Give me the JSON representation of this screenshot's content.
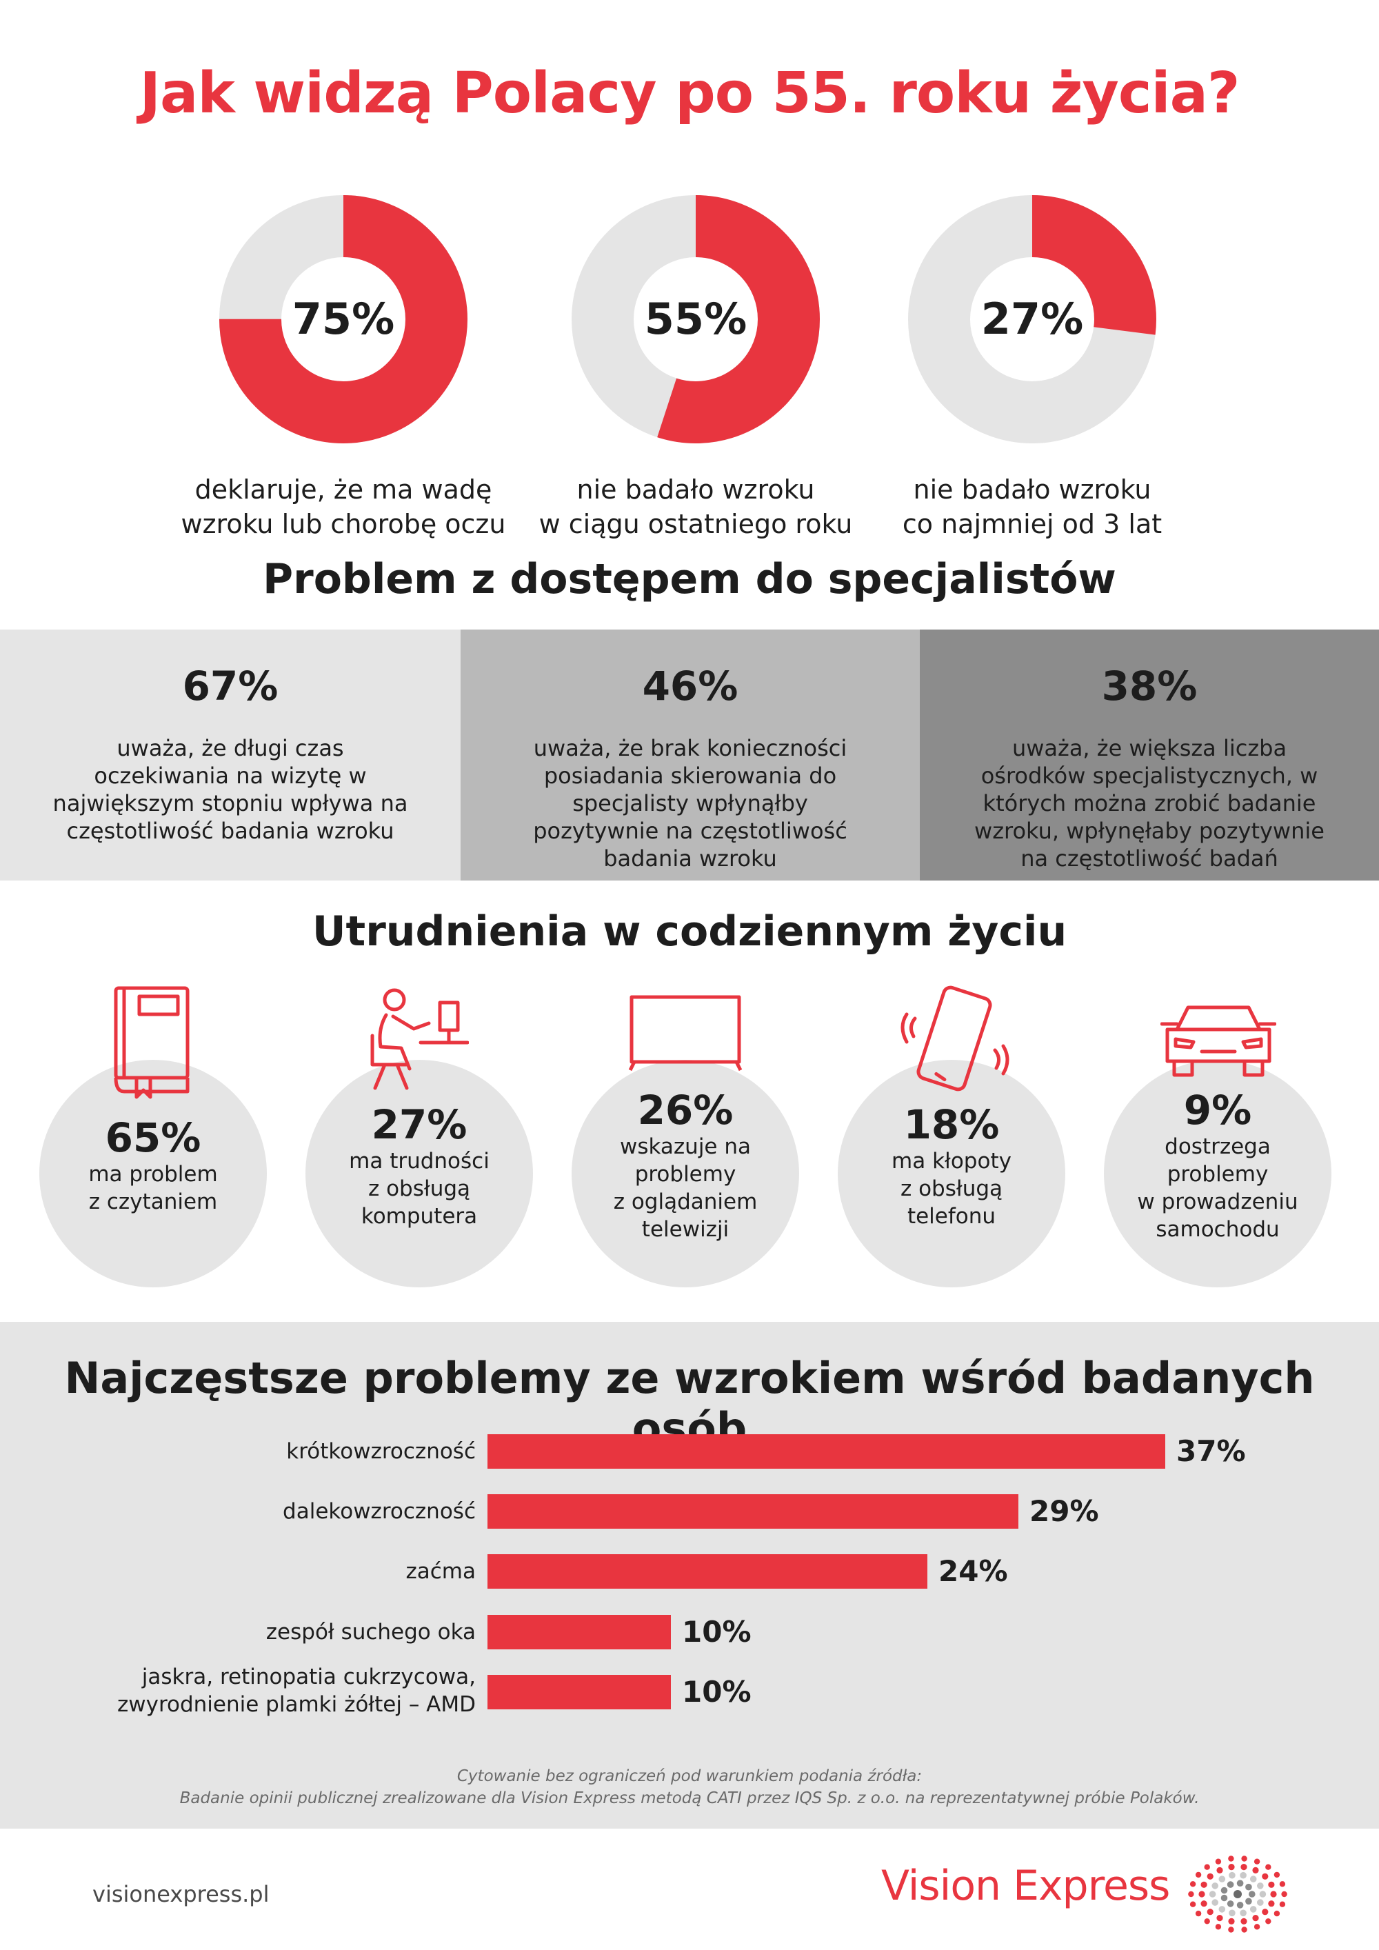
{
  "title": "Jak widzą Polacy po 55. roku życia?",
  "colors": {
    "accent": "#e8353f",
    "ring_bg": "#e5e5e5",
    "panel_1": "#e5e5e5",
    "panel_2": "#b9b9b9",
    "panel_3": "#8c8c8c",
    "text": "#1d1d1d"
  },
  "donuts": [
    {
      "value": 75,
      "label": "75%",
      "desc_line1": "deklaruje, że ma wadę",
      "desc_line2": "wzroku lub chorobę oczu"
    },
    {
      "value": 55,
      "label": "55%",
      "desc_line1": "nie badało wzroku",
      "desc_line2": "w ciągu ostatniego roku"
    },
    {
      "value": 27,
      "label": "27%",
      "desc_line1": "nie badało wzroku",
      "desc_line2": "co najmniej od 3 lat"
    }
  ],
  "access": {
    "heading": "Problem z dostępem do specjalistów",
    "items": [
      {
        "value": "67%",
        "desc": "uważa, że długi czas oczekiwania na wizytę w największym stopniu wpływa na częstotliwość badania wzroku"
      },
      {
        "value": "46%",
        "desc": "uważa, że brak konieczności posiadania skierowania do specjalisty wpłynąłby pozytywnie na częstotliwość badania wzroku"
      },
      {
        "value": "38%",
        "desc": "uważa, że większa liczba ośrodków specjalistycznych, w których można zrobić badanie wzroku, wpłynęłaby pozytywnie na częstotliwość badań"
      }
    ]
  },
  "daily": {
    "heading": "Utrudnienia w codziennym życiu",
    "items": [
      {
        "icon": "book-icon",
        "value": "65%",
        "lines": [
          "ma problem",
          "z czytaniem"
        ]
      },
      {
        "icon": "computer-user-icon",
        "value": "27%",
        "lines": [
          "ma trudności",
          "z obsługą",
          "komputera"
        ]
      },
      {
        "icon": "tv-icon",
        "value": "26%",
        "lines": [
          "wskazuje na",
          "problemy",
          "z oglądaniem",
          "telewizji"
        ]
      },
      {
        "icon": "phone-icon",
        "value": "18%",
        "lines": [
          "ma kłopoty",
          "z obsługą",
          "telefonu"
        ]
      },
      {
        "icon": "car-icon",
        "value": "9%",
        "lines": [
          "dostrzega",
          "problemy",
          "w prowadzeniu",
          "samochodu"
        ]
      }
    ]
  },
  "problems": {
    "heading": "Najczęstsze problemy ze wzrokiem wśród badanych osób",
    "source_line1": "Cytowanie bez ograniczeń pod warunkiem podania źródła:",
    "source_line2": "Badanie opinii publicznej zrealizowane dla Vision Express metodą CATI przez IQS Sp. z o.o. na reprezentatywnej próbie Polaków."
  },
  "chart_data": {
    "type": "bar",
    "orientation": "horizontal",
    "title": "Najczęstsze problemy ze wzrokiem wśród badanych osób",
    "categories": [
      "krótkowzroczność",
      "dalekowzroczność",
      "zaćma",
      "zespół suchego oka",
      "jaskra, retinopatia cukrzycowa, zwyrodnienie plamki żółtej – AMD"
    ],
    "category_lines": [
      [
        "krótkowzroczność"
      ],
      [
        "dalekowzroczność"
      ],
      [
        "zaćma"
      ],
      [
        "zespół suchego oka"
      ],
      [
        "jaskra, retinopatia cukrzycowa,",
        "zwyrodnienie plamki żółtej – AMD"
      ]
    ],
    "values": [
      37,
      29,
      24,
      10,
      10
    ],
    "value_labels": [
      "37%",
      "29%",
      "24%",
      "10%",
      "10%"
    ],
    "unit": "%",
    "xlim": [
      0,
      37
    ]
  },
  "footer": {
    "url": "visionexpress.pl",
    "brand": "Vision Express"
  }
}
